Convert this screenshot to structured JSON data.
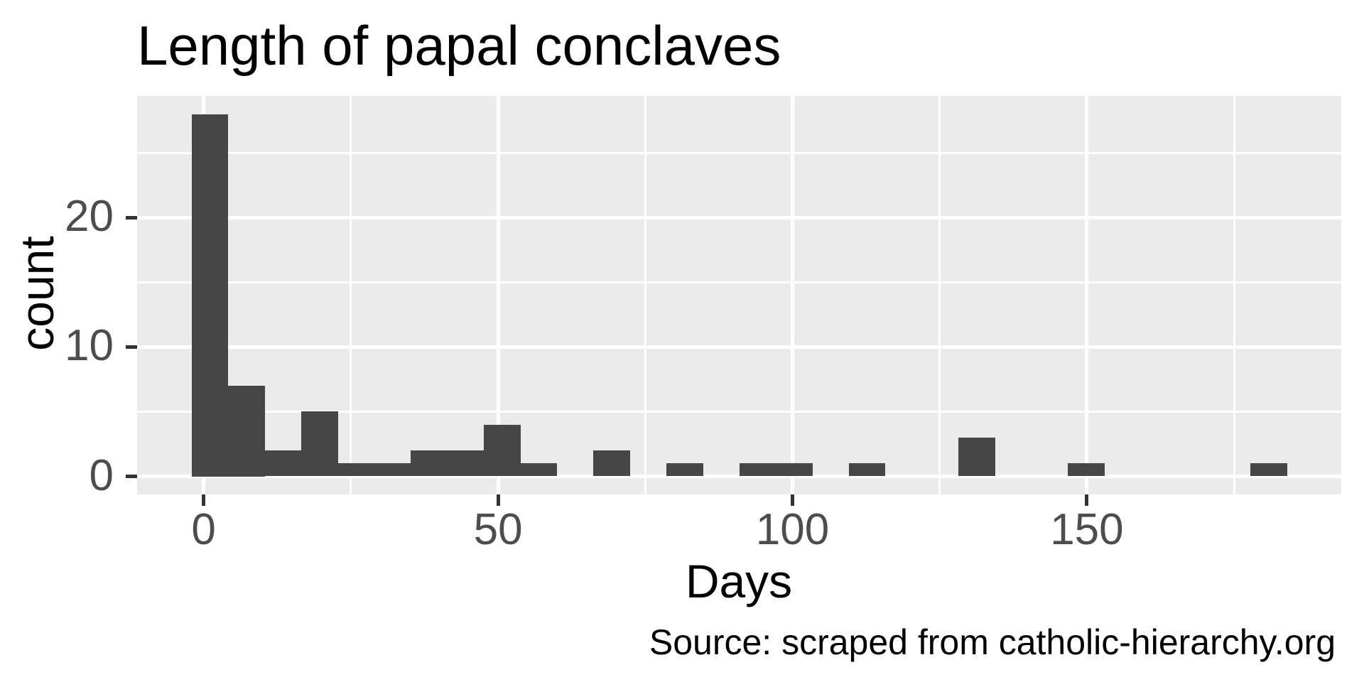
{
  "chart_data": {
    "type": "bar",
    "subtype": "histogram",
    "title": "Length of papal conclaves",
    "xlabel": "Days",
    "ylabel": "count",
    "caption": "Source: scraped from catholic-hierarchy.org",
    "bin_start": -2.0,
    "bin_width": 6.2,
    "counts": [
      28,
      7,
      2,
      5,
      1,
      1,
      2,
      2,
      4,
      1,
      0,
      2,
      0,
      1,
      0,
      1,
      1,
      0,
      1,
      0,
      0,
      3,
      0,
      0,
      1,
      0,
      0,
      0,
      0,
      1
    ],
    "xlim": [
      -11.3,
      193.2
    ],
    "ylim": [
      -1.4,
      29.4
    ],
    "x_ticks": {
      "major": [
        0,
        50,
        100,
        150
      ],
      "minor": [
        25,
        75,
        125,
        175
      ],
      "labels": [
        "0",
        "50",
        "100",
        "150"
      ]
    },
    "y_ticks": {
      "major": [
        0,
        10,
        20
      ],
      "minor": [
        5,
        15,
        25
      ],
      "labels": [
        "0",
        "10",
        "20"
      ]
    },
    "grid": "on",
    "legend": "none",
    "colors": {
      "bar": "#464646",
      "panel_bg": "#EBEBEB",
      "grid": "#FFFFFF",
      "tick_text": "#4D4D4D",
      "axis_tick": "#333333",
      "text": "#000000",
      "background": "#FFFFFF"
    }
  }
}
